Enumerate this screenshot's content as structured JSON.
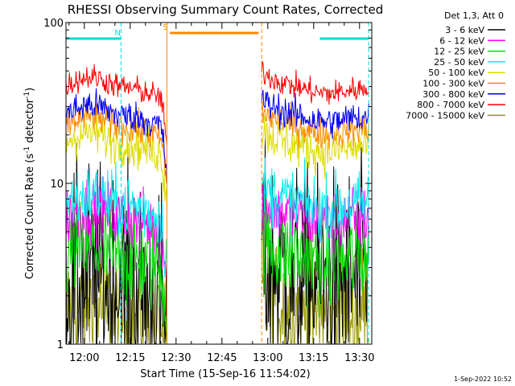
{
  "chart_data": {
    "type": "line",
    "title": "RHESSI Observing Summary Count Rates, Corrected",
    "xlabel": "Start Time (15-Sep-16 11:54:02)",
    "ylabel": "Corrected Count Rate (s",
    "ylabel_sup1": "-1",
    "ylabel_mid": " detector",
    "ylabel_sup2": "-1",
    "ylabel_end": ")",
    "yscale": "log",
    "ylim": [
      1,
      100
    ],
    "xlim_minutes": [
      0,
      100
    ],
    "xtick_minutes": [
      6,
      21,
      36,
      51,
      66,
      81,
      96
    ],
    "xtick_labels": [
      "12:00",
      "12:15",
      "12:30",
      "12:45",
      "13:00",
      "13:15",
      "13:30"
    ],
    "ytick_labels": [
      {
        "value": 100,
        "label": "100"
      },
      {
        "value": 10,
        "label": "10"
      },
      {
        "value": 1,
        "label": "1"
      }
    ],
    "legend_title": "Det 1,3, Att 0",
    "legend_position": "right",
    "data_gap_minutes": [
      33,
      64
    ],
    "series": [
      {
        "name": "3 - 6 keV",
        "color": "#000000",
        "level_before": 2.2,
        "level_after": 2.5,
        "noise": 0.35
      },
      {
        "name": "6 - 12 keV",
        "color": "#ff00ff",
        "level_before": 6.0,
        "level_after": 6.2,
        "noise": 0.1
      },
      {
        "name": "12 - 25 keV",
        "color": "#00dd00",
        "level_before": 3.4,
        "level_after": 3.5,
        "noise": 0.15
      },
      {
        "name": "25 - 50 keV",
        "color": "#00eeee",
        "level_before": 7.2,
        "level_after": 7.5,
        "noise": 0.1
      },
      {
        "name": "50 - 100 keV",
        "color": "#dddd00",
        "level_before": 17.5,
        "level_after": 17.0,
        "noise": 0.07
      },
      {
        "name": "100 - 300 keV",
        "color": "#ff8800",
        "level_before": 22.0,
        "level_after": 22.0,
        "noise": 0.05
      },
      {
        "name": "300 - 800 keV",
        "color": "#0000ff",
        "level_before": 26.0,
        "level_after": 26.0,
        "noise": 0.05
      },
      {
        "name": "800 - 7000 keV",
        "color": "#ff0000",
        "level_before": 39.0,
        "level_after": 39.0,
        "noise": 0.04
      },
      {
        "name": "7000 - 15000 keV",
        "color": "#999900",
        "level_before": 1.5,
        "level_after": 1.6,
        "noise": 0.2
      }
    ],
    "annotations": [
      {
        "label": "N",
        "color": "#00dddd",
        "start_minute": 0,
        "end_minute": 18
      },
      {
        "label": "",
        "color": "#00dddd",
        "start_minute": 83,
        "end_minute": 99
      },
      {
        "label": "S",
        "color": "#ff8800",
        "start_minute": 34,
        "end_minute": 63
      }
    ],
    "markers": [
      {
        "color": "#00dddd",
        "minute": 18,
        "style": "dashed"
      },
      {
        "color": "#00dddd",
        "minute": 99,
        "style": "dashed"
      },
      {
        "color": "#ff8800",
        "minute": 33,
        "style": "solid"
      },
      {
        "color": "#ff8800",
        "minute": 64,
        "style": "dashed"
      }
    ]
  },
  "footer": {
    "date_stamp": "1-Sep-2022 10:52"
  }
}
